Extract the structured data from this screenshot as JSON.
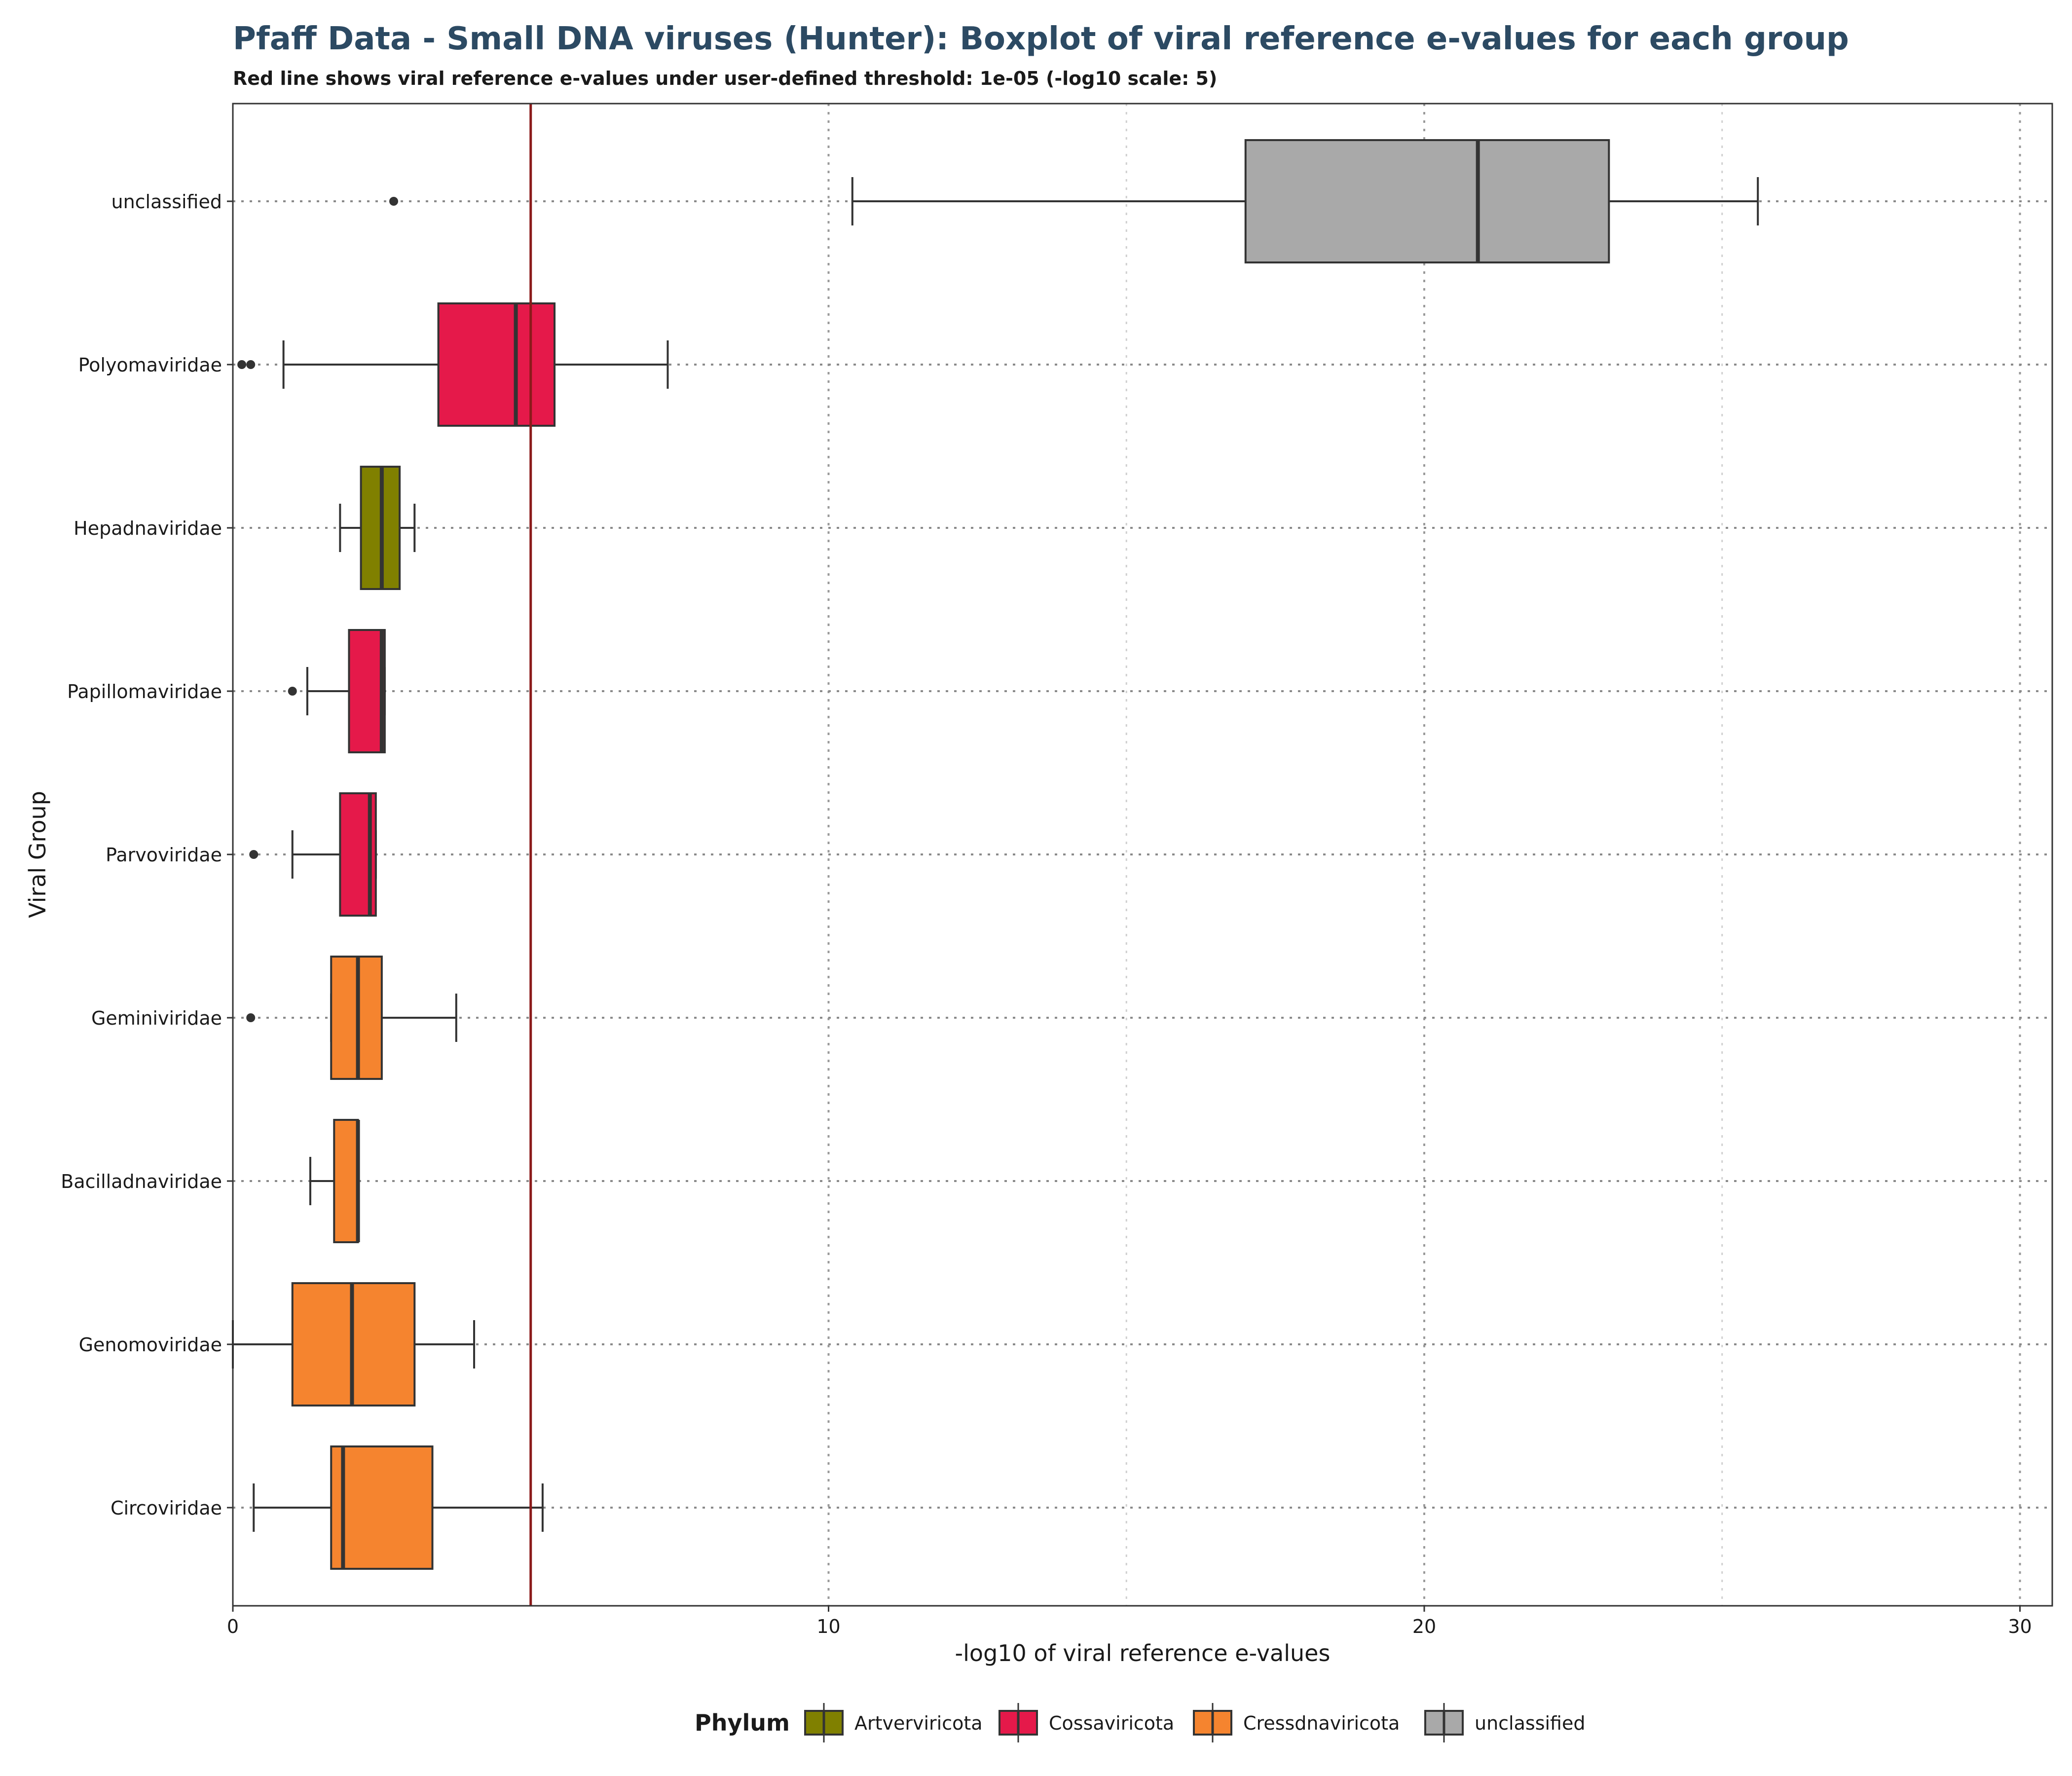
{
  "chart_data": {
    "type": "boxplot",
    "title": "Pfaff Data - Small DNA viruses (Hunter): Boxplot of viral reference e-values for each group",
    "subtitle": "Red line shows viral reference e-values under user-defined threshold: 1e-05 (-log10 scale: 5)",
    "xlabel": "-log10 of viral reference e-values",
    "ylabel": "Viral Group",
    "xlim": [
      0,
      30.5
    ],
    "x_ticks": [
      0,
      10,
      20,
      30
    ],
    "x_tick_labels": [
      "0",
      "10",
      "20",
      "30"
    ],
    "threshold": 5,
    "threshold_color": "#8b1a1a",
    "grid": true,
    "legend_position": "bottom",
    "legend_title": "Phylum",
    "legend": [
      {
        "label": "Artverviricota",
        "color": "#808000"
      },
      {
        "label": "Cossaviricota",
        "color": "#e5194a"
      },
      {
        "label": "Cressdnaviricota",
        "color": "#f5842f"
      },
      {
        "label": "unclassified",
        "color": "#a9a9a9"
      }
    ],
    "groups": [
      {
        "name": "unclassified",
        "phylum": "unclassified",
        "whisker_low": 10.4,
        "q1": 17.0,
        "median": 20.9,
        "q3": 23.1,
        "whisker_high": 25.6,
        "outliers": [
          2.7
        ]
      },
      {
        "name": "Polyomaviridae",
        "phylum": "Cossaviricota",
        "whisker_low": 0.85,
        "q1": 3.45,
        "median": 4.75,
        "q3": 5.4,
        "whisker_high": 7.3,
        "outliers": [
          0.15,
          0.3
        ]
      },
      {
        "name": "Hepadnaviridae",
        "phylum": "Artverviricota",
        "whisker_low": 1.8,
        "q1": 2.15,
        "median": 2.5,
        "q3": 2.8,
        "whisker_high": 3.05,
        "outliers": []
      },
      {
        "name": "Papillomaviridae",
        "phylum": "Cossaviricota",
        "whisker_low": 1.25,
        "q1": 1.95,
        "median": 2.5,
        "q3": 2.55,
        "whisker_high": 2.55,
        "outliers": [
          1.0
        ]
      },
      {
        "name": "Parvoviridae",
        "phylum": "Cossaviricota",
        "whisker_low": 1.0,
        "q1": 1.8,
        "median": 2.3,
        "q3": 2.4,
        "whisker_high": 2.4,
        "outliers": [
          0.35
        ]
      },
      {
        "name": "Geminiviridae",
        "phylum": "Cressdnaviricota",
        "whisker_low": 1.65,
        "q1": 1.65,
        "median": 2.1,
        "q3": 2.5,
        "whisker_high": 3.75,
        "outliers": [
          0.3
        ]
      },
      {
        "name": "Bacilladnaviridae",
        "phylum": "Cressdnaviricota",
        "whisker_low": 1.3,
        "q1": 1.7,
        "median": 2.1,
        "q3": 2.1,
        "whisker_high": 2.1,
        "outliers": []
      },
      {
        "name": "Genomoviridae",
        "phylum": "Cressdnaviricota",
        "whisker_low": 0.0,
        "q1": 1.0,
        "median": 2.0,
        "q3": 3.05,
        "whisker_high": 4.05,
        "outliers": []
      },
      {
        "name": "Circoviridae",
        "phylum": "Cressdnaviricota",
        "whisker_low": 0.35,
        "q1": 1.65,
        "median": 1.85,
        "q3": 3.35,
        "whisker_high": 5.2,
        "outliers": []
      }
    ]
  }
}
